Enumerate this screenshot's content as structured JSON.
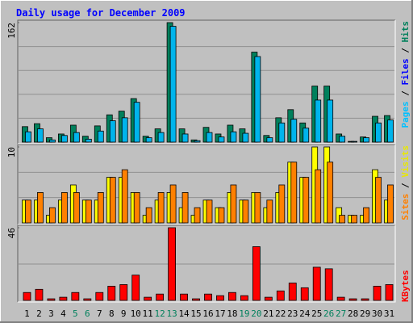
{
  "chart_data": [
    {
      "type": "bar",
      "title": "Daily usage for December 2009",
      "ylim": [
        0,
        162
      ],
      "yticks": [
        162
      ],
      "legend": [
        {
          "name": "Pages",
          "color": "#00c0ff"
        },
        {
          "name": "Files",
          "color": "#0000ff"
        },
        {
          "name": "Hits",
          "color": "#00805c"
        }
      ],
      "legend_separator": "/",
      "series": [
        {
          "color": "#00805c",
          "values": [
            21,
            25,
            6,
            11,
            23,
            8,
            22,
            37,
            42,
            59,
            8,
            18,
            162,
            18,
            3,
            20,
            11,
            23,
            18,
            122,
            9,
            33,
            44,
            26,
            76,
            76,
            11,
            1,
            7,
            35,
            36
          ]
        },
        {
          "color": "#00b4ec",
          "values": [
            14,
            18,
            3,
            9,
            13,
            4,
            15,
            29,
            33,
            54,
            6,
            13,
            157,
            11,
            2,
            13,
            7,
            14,
            12,
            116,
            6,
            26,
            31,
            19,
            57,
            57,
            8,
            1,
            6,
            26,
            30
          ]
        }
      ]
    },
    {
      "type": "bar",
      "ylim": [
        0,
        10
      ],
      "yticks": [
        10
      ],
      "legend": [
        {
          "name": "Sites",
          "color": "#ff8000"
        },
        {
          "name": "Visits",
          "color": "#e8e800"
        }
      ],
      "legend_separator": "/",
      "series": [
        {
          "color": "#ffff00",
          "values": [
            3,
            3,
            1,
            3,
            5,
            3,
            3,
            6,
            6,
            4,
            1,
            3,
            4,
            2,
            1,
            3,
            2,
            4,
            3,
            4,
            2,
            4,
            8,
            6,
            10,
            10,
            2,
            1,
            1,
            7,
            3
          ]
        },
        {
          "color": "#ff8000",
          "values": [
            3,
            4,
            2,
            4,
            4,
            3,
            4,
            6,
            7,
            4,
            2,
            4,
            5,
            4,
            2,
            3,
            2,
            5,
            3,
            4,
            3,
            5,
            8,
            6,
            7,
            8,
            1,
            1,
            2,
            6,
            5
          ]
        }
      ]
    },
    {
      "type": "bar",
      "ylim": [
        0,
        46
      ],
      "yticks": [
        46
      ],
      "legend": [
        {
          "name": "KBytes",
          "color": "#ff0000"
        }
      ],
      "categories": [
        "1",
        "2",
        "3",
        "4",
        "5",
        "6",
        "7",
        "8",
        "9",
        "10",
        "11",
        "12",
        "13",
        "14",
        "15",
        "16",
        "17",
        "18",
        "19",
        "20",
        "21",
        "22",
        "23",
        "24",
        "25",
        "26",
        "27",
        "28",
        "29",
        "30",
        "31"
      ],
      "category_colors": [
        "#000000",
        "#000000",
        "#000000",
        "#000000",
        "#00805c",
        "#00805c",
        "#000000",
        "#000000",
        "#000000",
        "#000000",
        "#000000",
        "#00805c",
        "#00805c",
        "#000000",
        "#000000",
        "#000000",
        "#000000",
        "#000000",
        "#00805c",
        "#00805c",
        "#000000",
        "#000000",
        "#000000",
        "#000000",
        "#000000",
        "#00805c",
        "#00805c",
        "#000000",
        "#000000",
        "#000000",
        "#000000"
      ],
      "series": [
        {
          "color": "#ff0000",
          "values": [
            5,
            7,
            1,
            2,
            5,
            1,
            5,
            9,
            10,
            16,
            2,
            4,
            46,
            4,
            1,
            4,
            3,
            5,
            3,
            34,
            2,
            6,
            11,
            8,
            21,
            20,
            2,
            1,
            1,
            9,
            10
          ]
        }
      ]
    }
  ]
}
